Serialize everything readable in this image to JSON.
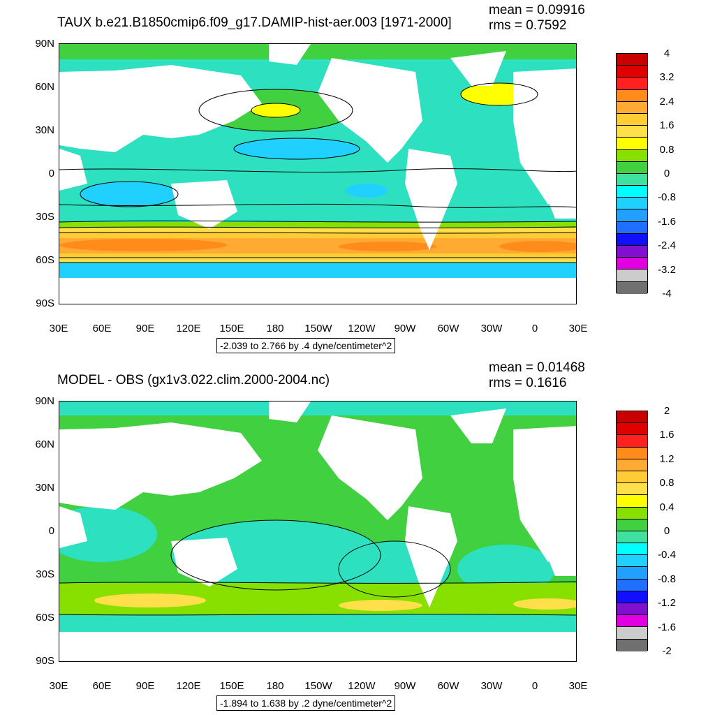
{
  "panels": [
    {
      "title": "TAUX b.e21.B1850cmip6.f09_g17.DAMIP-hist-aer.003 [1971-2000]",
      "mean": "mean = 0.09916",
      "rms": "rms = 0.7592",
      "range_label": "-2.039 to 2.766 by .4 dyne/centimeter^2",
      "colorbar_labels": [
        "4",
        "3.2",
        "2.4",
        "1.6",
        "0.8",
        "0",
        "-0.8",
        "-1.6",
        "-2.4",
        "-3.2",
        "-4"
      ],
      "colorbar_colors": [
        "#c80000",
        "#e00000",
        "#ff2020",
        "#ff8c1a",
        "#ffaa33",
        "#ffcc33",
        "#ffe04a",
        "#ffff00",
        "#88e000",
        "#40d040",
        "#40e0a0",
        "#00ffff",
        "#20d0ff",
        "#20a0ff",
        "#2070ff",
        "#1010ff",
        "#8010d0",
        "#e000e0",
        "#cccccc",
        "#707070"
      ]
    },
    {
      "title": "MODEL - OBS (gx1v3.022.clim.2000-2004.nc)",
      "mean": "mean = 0.01468",
      "rms": "rms = 0.1616",
      "range_label": "-1.894 to 1.638 by .2 dyne/centimeter^2",
      "colorbar_labels": [
        "2",
        "1.6",
        "1.2",
        "0.8",
        "0.4",
        "0",
        "-0.4",
        "-0.8",
        "-1.2",
        "-1.6",
        "-2"
      ],
      "colorbar_colors": [
        "#c80000",
        "#e00000",
        "#ff2020",
        "#ff8c1a",
        "#ffaa33",
        "#ffcc33",
        "#ffe04a",
        "#ffff00",
        "#88e000",
        "#40d040",
        "#40e0a0",
        "#00ffff",
        "#20d0ff",
        "#20a0ff",
        "#2070ff",
        "#1010ff",
        "#8010d0",
        "#e000e0",
        "#cccccc",
        "#707070"
      ]
    }
  ],
  "lat_labels": [
    "90N",
    "60N",
    "30N",
    "0",
    "30S",
    "60S",
    "90S"
  ],
  "lon_labels": [
    "30E",
    "60E",
    "90E",
    "120E",
    "150E",
    "180",
    "150W",
    "120W",
    "90W",
    "60W",
    "30W",
    "0",
    "30E"
  ]
}
